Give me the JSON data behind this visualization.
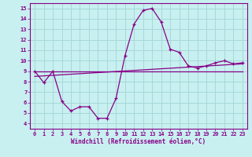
{
  "xlabel": "Windchill (Refroidissement éolien,°C)",
  "bg_color": "#c8f0f0",
  "grid_color": "#a8d8d8",
  "line_color": "#880088",
  "x_ticks": [
    0,
    1,
    2,
    3,
    4,
    5,
    6,
    7,
    8,
    9,
    10,
    11,
    12,
    13,
    14,
    15,
    16,
    17,
    18,
    19,
    20,
    21,
    22,
    23
  ],
  "y_ticks": [
    4,
    5,
    6,
    7,
    8,
    9,
    10,
    11,
    12,
    13,
    14,
    15
  ],
  "ylim": [
    3.5,
    15.5
  ],
  "xlim": [
    -0.5,
    23.5
  ],
  "curve1_x": [
    0,
    1,
    2,
    3,
    4,
    5,
    6,
    7,
    8,
    9,
    10,
    11,
    12,
    13,
    14,
    15,
    16,
    17,
    18,
    19,
    20,
    21,
    22,
    23
  ],
  "curve1_y": [
    9.0,
    7.9,
    9.0,
    6.1,
    5.2,
    5.6,
    5.6,
    4.5,
    4.5,
    6.4,
    10.5,
    13.5,
    14.8,
    15.0,
    13.7,
    11.1,
    10.8,
    9.5,
    9.3,
    9.5,
    9.8,
    10.0,
    9.7,
    9.8
  ],
  "line2_x": [
    0,
    23
  ],
  "line2_y": [
    9.0,
    9.0
  ],
  "line3_x": [
    0,
    23
  ],
  "line3_y": [
    8.5,
    9.7
  ],
  "tick_fontsize": 5.0,
  "xlabel_fontsize": 5.5
}
